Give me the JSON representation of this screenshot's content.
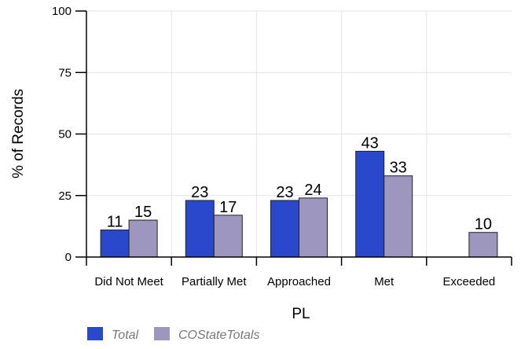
{
  "chart_data": {
    "type": "bar",
    "categories": [
      "Did Not Meet",
      "Partially Met",
      "Approached",
      "Met",
      "Exceeded"
    ],
    "series": [
      {
        "name": "Total",
        "color": "#2a48cc",
        "values": [
          11,
          23,
          23,
          43,
          null
        ]
      },
      {
        "name": "COStateTotals",
        "color": "#9d97c0",
        "values": [
          15,
          17,
          24,
          33,
          10
        ]
      }
    ],
    "xlabel": "PL",
    "ylabel": "% of Records",
    "ylim": [
      0,
      100
    ],
    "yticks": [
      0,
      25,
      50,
      75,
      100
    ],
    "grid": true,
    "legend_position": "bottom-left"
  }
}
